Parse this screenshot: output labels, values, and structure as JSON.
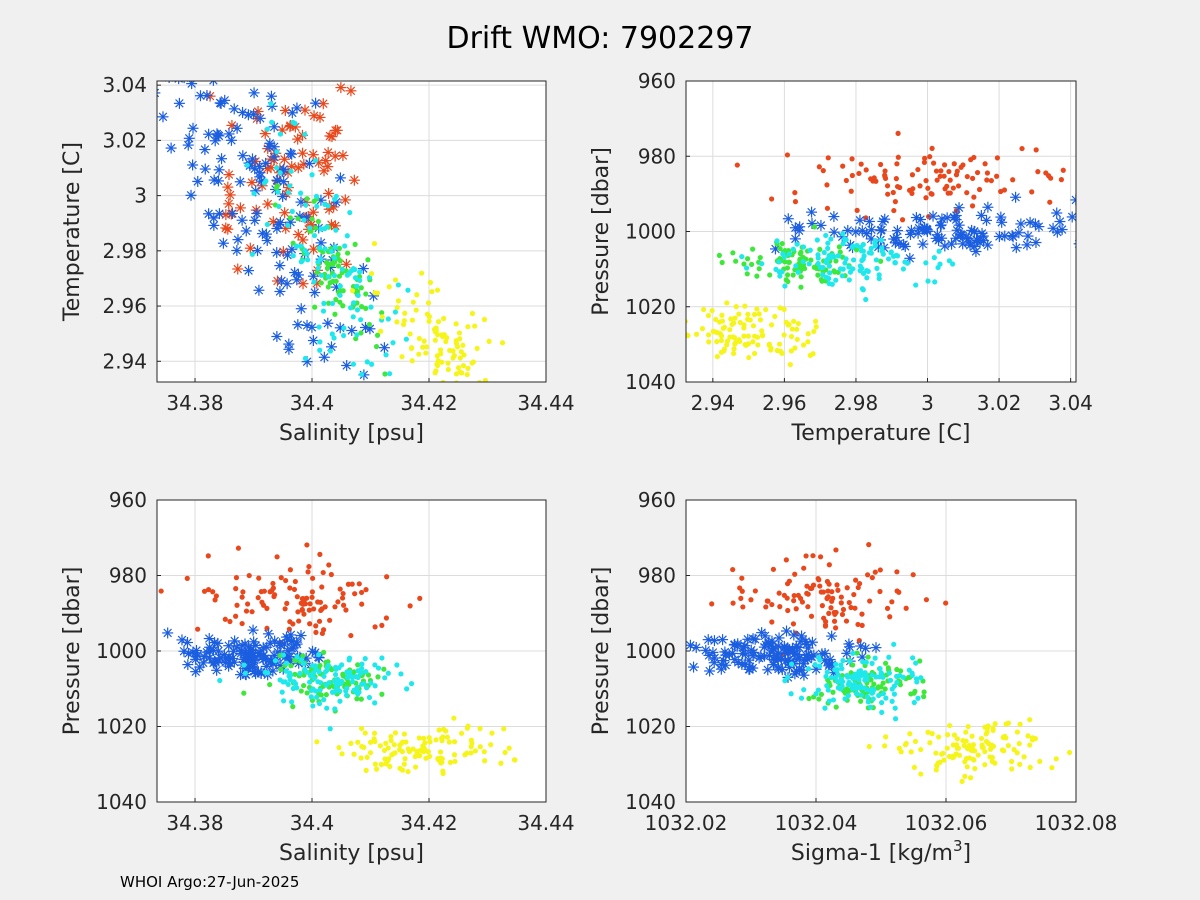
{
  "figure": {
    "title": "Drift WMO: 7902297",
    "footer": "WHOI Argo:27-Jun-2025"
  },
  "colors": {
    "background": "#f0f0f0",
    "axes_bg": "#ffffff",
    "grid": "#dcdcdc",
    "red": "#e8481c",
    "blue": "#1b5ee0",
    "green": "#3de83a",
    "cyan": "#1fe8ec",
    "yellow": "#f5f51a"
  },
  "chart_data": [
    {
      "type": "scatter",
      "xlabel": "Salinity [psu]",
      "ylabel": "Temperature [C]",
      "xlim": [
        34.3735,
        34.44
      ],
      "ylim": [
        2.9325,
        3.0415
      ],
      "xticks": [
        "34.38",
        "34.4",
        "34.42",
        "34.44"
      ],
      "yticks": [
        "2.94",
        "2.96",
        "2.98",
        "3",
        "3.02",
        "3.04"
      ],
      "y_reversed": false,
      "grid": true,
      "series": [
        {
          "color": "red",
          "marker": "asterisk",
          "center": [
            34.396,
            3.005
          ],
          "spread": [
            0.006,
            0.016
          ],
          "count": 90
        },
        {
          "color": "blue",
          "marker": "asterisk",
          "center": [
            34.392,
            2.998
          ],
          "spread": [
            0.009,
            0.02
          ],
          "count": 150,
          "trend": -2.4
        },
        {
          "color": "green",
          "marker": "dot",
          "center": [
            34.404,
            2.972
          ],
          "spread": [
            0.004,
            0.008
          ],
          "count": 90,
          "trend": -2.4
        },
        {
          "color": "cyan",
          "marker": "dot",
          "center": [
            34.403,
            2.977
          ],
          "spread": [
            0.006,
            0.016
          ],
          "count": 110,
          "trend": -2.2
        },
        {
          "color": "yellow",
          "marker": "dot",
          "center": [
            34.422,
            2.947
          ],
          "spread": [
            0.006,
            0.008
          ],
          "count": 110,
          "trend": -1.5
        }
      ]
    },
    {
      "type": "scatter",
      "xlabel": "Temperature [C]",
      "ylabel": "Pressure [dbar]",
      "xlim": [
        2.9325,
        3.0415
      ],
      "ylim": [
        960,
        1040
      ],
      "xticks": [
        "2.94",
        "2.96",
        "2.98",
        "3",
        "3.02",
        "3.04"
      ],
      "yticks": [
        "960",
        "980",
        "1000",
        "1020",
        "1040"
      ],
      "y_reversed": true,
      "grid": true,
      "series": [
        {
          "color": "red",
          "marker": "dot",
          "center": [
            3.002,
            986
          ],
          "spread": [
            0.018,
            5
          ],
          "count": 110
        },
        {
          "color": "blue",
          "marker": "asterisk",
          "center": [
            3.005,
            1000
          ],
          "spread": [
            0.02,
            3
          ],
          "count": 120
        },
        {
          "color": "green",
          "marker": "dot",
          "center": [
            2.965,
            1008
          ],
          "spread": [
            0.01,
            3
          ],
          "count": 90
        },
        {
          "color": "cyan",
          "marker": "dot",
          "center": [
            2.978,
            1008
          ],
          "spread": [
            0.014,
            3.5
          ],
          "count": 120
        },
        {
          "color": "yellow",
          "marker": "dot",
          "center": [
            2.95,
            1026
          ],
          "spread": [
            0.009,
            4
          ],
          "count": 110
        }
      ]
    },
    {
      "type": "scatter",
      "xlabel": "Salinity [psu]",
      "ylabel": "Pressure [dbar]",
      "xlim": [
        34.3735,
        34.44
      ],
      "ylim": [
        960,
        1040
      ],
      "xticks": [
        "34.38",
        "34.4",
        "34.42",
        "34.44"
      ],
      "yticks": [
        "960",
        "980",
        "1000",
        "1020",
        "1040"
      ],
      "y_reversed": true,
      "grid": true,
      "series": [
        {
          "color": "red",
          "marker": "dot",
          "center": [
            34.397,
            986
          ],
          "spread": [
            0.008,
            5
          ],
          "count": 110
        },
        {
          "color": "blue",
          "marker": "asterisk",
          "center": [
            34.389,
            1001
          ],
          "spread": [
            0.006,
            3
          ],
          "count": 130
        },
        {
          "color": "green",
          "marker": "dot",
          "center": [
            34.403,
            1008
          ],
          "spread": [
            0.005,
            3
          ],
          "count": 90
        },
        {
          "color": "cyan",
          "marker": "dot",
          "center": [
            34.403,
            1008
          ],
          "spread": [
            0.006,
            3.5
          ],
          "count": 120
        },
        {
          "color": "yellow",
          "marker": "dot",
          "center": [
            34.419,
            1026
          ],
          "spread": [
            0.007,
            3.5
          ],
          "count": 120
        }
      ]
    },
    {
      "type": "scatter",
      "xlabel": "Sigma-1 [kg/m",
      "xlabel_sup": "3",
      "xlabel_tail": "]",
      "ylabel": "Pressure [dbar]",
      "xlim": [
        1032.02,
        1032.08
      ],
      "ylim": [
        960,
        1040
      ],
      "xticks": [
        "1032.02",
        "1032.04",
        "1032.06",
        "1032.08"
      ],
      "yticks": [
        "960",
        "980",
        "1000",
        "1020",
        "1040"
      ],
      "y_reversed": true,
      "grid": true,
      "series": [
        {
          "color": "red",
          "marker": "dot",
          "center": [
            1032.041,
            986
          ],
          "spread": [
            0.007,
            5
          ],
          "count": 110
        },
        {
          "color": "blue",
          "marker": "asterisk",
          "center": [
            1032.033,
            1001
          ],
          "spread": [
            0.006,
            3
          ],
          "count": 130
        },
        {
          "color": "green",
          "marker": "dot",
          "center": [
            1032.048,
            1008
          ],
          "spread": [
            0.005,
            3
          ],
          "count": 90
        },
        {
          "color": "cyan",
          "marker": "dot",
          "center": [
            1032.047,
            1008
          ],
          "spread": [
            0.005,
            3.5
          ],
          "count": 120
        },
        {
          "color": "yellow",
          "marker": "dot",
          "center": [
            1032.064,
            1026
          ],
          "spread": [
            0.006,
            3.5
          ],
          "count": 120
        }
      ]
    }
  ]
}
